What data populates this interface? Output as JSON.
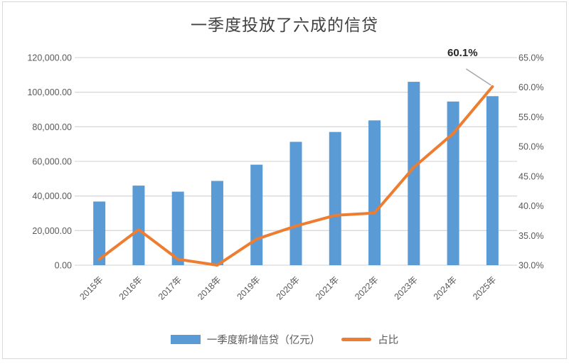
{
  "chart_data": {
    "type": "combo",
    "title": "一季度投放了六成的信贷",
    "categories": [
      "2015年",
      "2016年",
      "2017年",
      "2018年",
      "2019年",
      "2020年",
      "2021年",
      "2022年",
      "2023年",
      "2024年",
      "2025年"
    ],
    "series": [
      {
        "name": "一季度新增信贷（亿元）",
        "type": "bar",
        "axis": "left",
        "values": [
          36800,
          46000,
          42500,
          48700,
          58100,
          71300,
          77000,
          83700,
          106000,
          94600,
          97700
        ]
      },
      {
        "name": "占比",
        "type": "line",
        "axis": "right",
        "values": [
          31.0,
          36.0,
          31.0,
          30.0,
          34.4,
          36.6,
          38.4,
          38.8,
          46.5,
          52.2,
          60.1
        ]
      }
    ],
    "y_left": {
      "min": 0,
      "max": 120000,
      "step": 20000,
      "tick_labels": [
        "0.00",
        "20,000.00",
        "40,000.00",
        "60,000.00",
        "80,000.00",
        "100,000.00",
        "120,000.00"
      ]
    },
    "y_right": {
      "min": 30,
      "max": 65,
      "step": 5,
      "tick_labels": [
        "30.0%",
        "35.0%",
        "40.0%",
        "45.0%",
        "50.0%",
        "55.0%",
        "60.0%",
        "65.0%"
      ]
    },
    "annotation": {
      "series": "占比",
      "category": "2025年",
      "label": "60.1%"
    },
    "legend_position": "bottom",
    "grid": true
  },
  "colors": {
    "bar": "#5B9BD5",
    "line": "#ED7D31",
    "grid": "#D9D9D9",
    "axis_text": "#595959",
    "title_text": "#404040",
    "annotation_text": "#262626",
    "leader": "#A6A6A6",
    "frame": "#D9D9D9"
  }
}
